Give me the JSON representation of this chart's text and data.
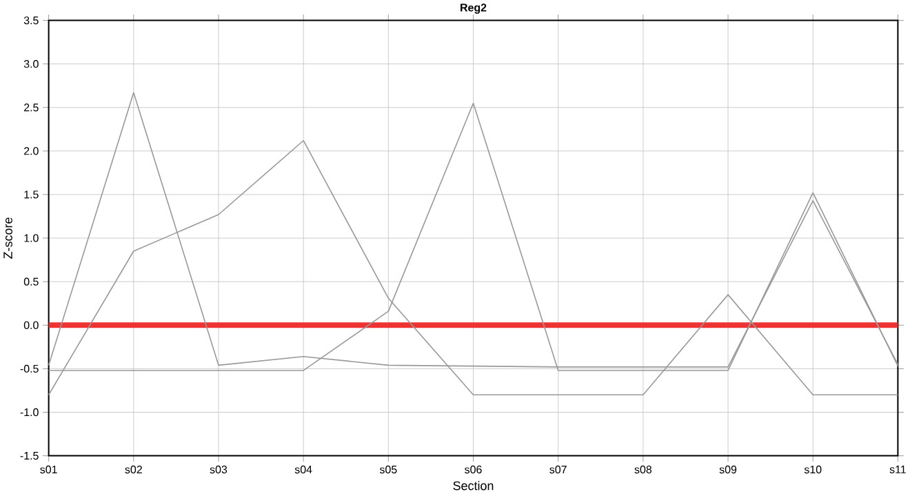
{
  "chart_data": {
    "type": "line",
    "title": "Reg2",
    "xlabel": "Section",
    "ylabel": "Z-score",
    "categories": [
      "s01",
      "s02",
      "s03",
      "s04",
      "s05",
      "s06",
      "s07",
      "s08",
      "s09",
      "s10",
      "s11"
    ],
    "series": [
      {
        "color": "#999999",
        "values": [
          -0.46,
          2.67,
          -0.46,
          -0.36,
          -0.46,
          -0.47,
          -0.48,
          -0.48,
          -0.48,
          1.43,
          -0.45
        ]
      },
      {
        "color": "#999999",
        "values": [
          -0.8,
          0.85,
          1.27,
          2.12,
          0.31,
          -0.8,
          -0.8,
          -0.8,
          0.35,
          -0.8,
          -0.8
        ]
      },
      {
        "color": "#999999",
        "values": [
          -0.52,
          -0.52,
          -0.52,
          -0.52,
          0.16,
          2.55,
          -0.52,
          -0.52,
          -0.52,
          1.52,
          -0.47
        ]
      }
    ],
    "ylim": [
      -1.5,
      3.5
    ],
    "yticks": [
      {
        "value": -1.5,
        "label": "-1.5"
      },
      {
        "value": -1.0,
        "label": "-1.0"
      },
      {
        "value": -0.5,
        "label": "-0.5"
      },
      {
        "value": 0,
        "label": "0.0"
      },
      {
        "value": 0.5,
        "label": "0.5"
      },
      {
        "value": 1.0,
        "label": "1.0"
      },
      {
        "value": 1.5,
        "label": "1.5"
      },
      {
        "value": 2.0,
        "label": "2.0"
      },
      {
        "value": 2.5,
        "label": "2.5"
      },
      {
        "value": 3.0,
        "label": "3.0"
      },
      {
        "value": 3.5,
        "label": "3.5"
      }
    ],
    "ref_lines": [
      {
        "axis": "y",
        "value": 0,
        "color": "#ee3333"
      }
    ],
    "grid": true,
    "marker": "none",
    "line_style": "solid"
  }
}
